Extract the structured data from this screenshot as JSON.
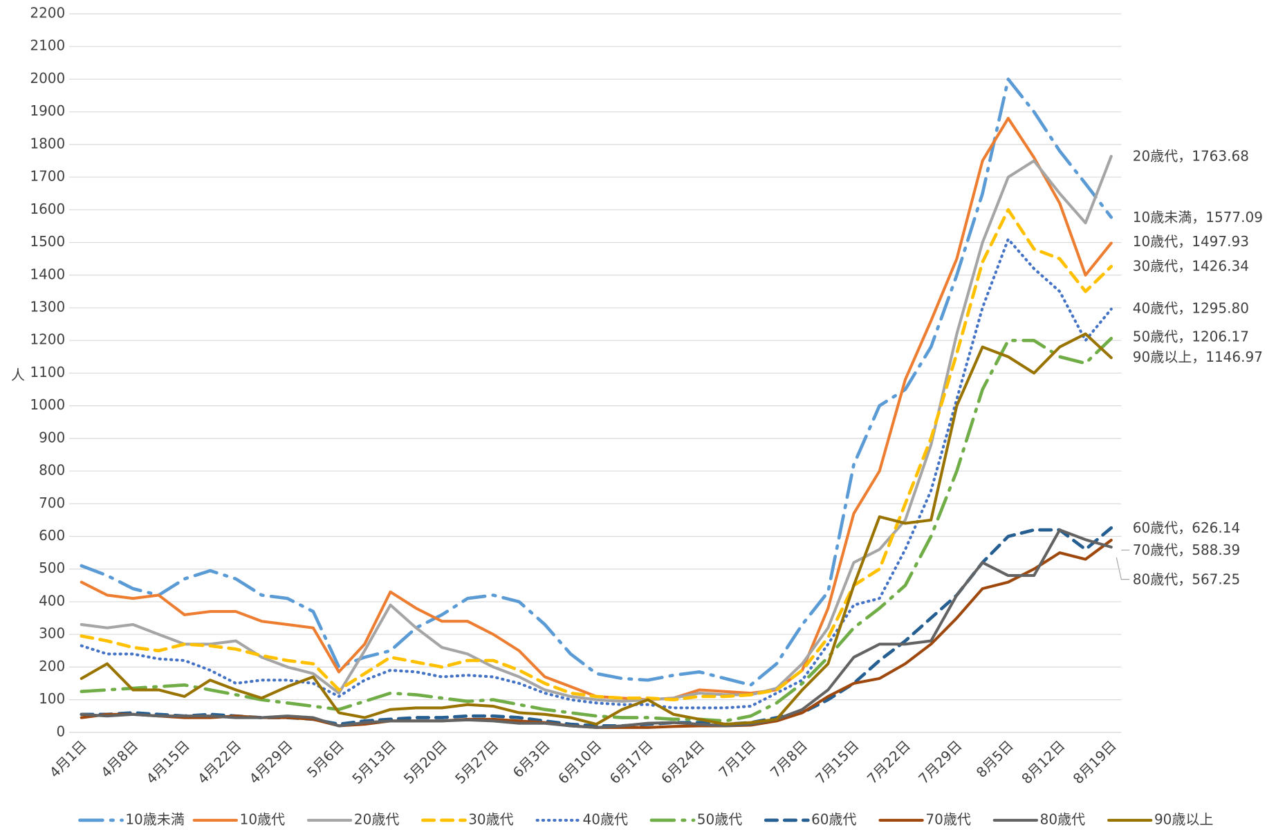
{
  "chart_data": {
    "type": "line",
    "y_label": "人",
    "categories": [
      "4月1日",
      null,
      "4月8日",
      null,
      "4月15日",
      null,
      "4月22日",
      null,
      "4月29日",
      null,
      "5月6日",
      null,
      "5月13日",
      null,
      "5月20日",
      null,
      "5月27日",
      null,
      "6月3日",
      null,
      "6月10日",
      null,
      "6月17日",
      null,
      "6月24日",
      null,
      "7月1日",
      null,
      "7月8日",
      null,
      "7月15日",
      null,
      "7月22日",
      null,
      "7月29日",
      null,
      "8月5日",
      null,
      "8月12日",
      null,
      "8月19日"
    ],
    "ylim": [
      0,
      2200
    ],
    "yticks": [
      0,
      100,
      200,
      300,
      400,
      500,
      600,
      700,
      800,
      900,
      1000,
      1100,
      1200,
      1300,
      1400,
      1500,
      1600,
      1700,
      1800,
      1900,
      2000,
      2100,
      2200
    ],
    "grid": true,
    "legend": "bottom",
    "series": [
      {
        "name": "10歳未満",
        "color": "#5b9bd5",
        "dash": "long-dash-dot",
        "values": [
          510,
          480,
          440,
          420,
          470,
          495,
          470,
          420,
          410,
          370,
          200,
          230,
          250,
          320,
          360,
          410,
          420,
          400,
          330,
          240,
          180,
          165,
          160,
          175,
          185,
          165,
          145,
          210,
          330,
          430,
          820,
          1000,
          1050,
          1180,
          1400,
          1650,
          2000,
          1900,
          1780,
          1680,
          1577.09
        ]
      },
      {
        "name": "10歳代",
        "color": "#ed7d31",
        "dash": "solid",
        "values": [
          460,
          420,
          410,
          420,
          360,
          370,
          370,
          340,
          330,
          320,
          185,
          270,
          430,
          380,
          340,
          340,
          300,
          250,
          170,
          140,
          110,
          105,
          100,
          105,
          130,
          125,
          120,
          130,
          190,
          380,
          670,
          800,
          1080,
          1260,
          1450,
          1750,
          1880,
          1760,
          1620,
          1400,
          1497.93
        ]
      },
      {
        "name": "20歳代",
        "color": "#a5a5a5",
        "dash": "solid",
        "values": [
          330,
          320,
          330,
          300,
          270,
          270,
          280,
          230,
          200,
          180,
          120,
          250,
          390,
          320,
          260,
          240,
          200,
          170,
          130,
          110,
          100,
          95,
          100,
          105,
          120,
          115,
          115,
          135,
          210,
          320,
          520,
          560,
          650,
          880,
          1220,
          1500,
          1700,
          1750,
          1650,
          1560,
          1763.68
        ]
      },
      {
        "name": "30歳代",
        "color": "#ffc000",
        "dash": "dash",
        "values": [
          295,
          280,
          260,
          250,
          270,
          265,
          255,
          235,
          220,
          210,
          130,
          180,
          230,
          215,
          200,
          220,
          220,
          190,
          150,
          120,
          110,
          105,
          105,
          100,
          110,
          110,
          115,
          130,
          190,
          290,
          450,
          500,
          700,
          900,
          1160,
          1440,
          1600,
          1480,
          1450,
          1350,
          1426.34
        ]
      },
      {
        "name": "40歳代",
        "color": "#4472c4",
        "dash": "dot",
        "values": [
          265,
          240,
          240,
          225,
          220,
          190,
          150,
          160,
          160,
          150,
          110,
          160,
          190,
          185,
          170,
          175,
          170,
          150,
          120,
          100,
          90,
          85,
          85,
          75,
          75,
          75,
          80,
          120,
          160,
          270,
          390,
          410,
          560,
          740,
          1020,
          1300,
          1510,
          1420,
          1350,
          1200,
          1295.8
        ]
      },
      {
        "name": "50歳代",
        "color": "#70ad47",
        "dash": "long-dash-dot",
        "values": [
          125,
          130,
          135,
          140,
          145,
          130,
          115,
          100,
          90,
          80,
          70,
          95,
          120,
          115,
          105,
          95,
          100,
          85,
          70,
          60,
          50,
          45,
          45,
          40,
          40,
          35,
          50,
          90,
          150,
          230,
          320,
          380,
          450,
          600,
          800,
          1050,
          1200,
          1200,
          1150,
          1130,
          1206.17
        ]
      },
      {
        "name": "60歳代",
        "color": "#255e91",
        "dash": "dash",
        "values": [
          55,
          55,
          60,
          55,
          50,
          55,
          50,
          45,
          45,
          40,
          25,
          35,
          40,
          45,
          45,
          50,
          50,
          45,
          35,
          25,
          20,
          20,
          25,
          30,
          30,
          25,
          30,
          45,
          60,
          100,
          150,
          220,
          280,
          350,
          420,
          520,
          600,
          620,
          620,
          560,
          626.14
        ]
      },
      {
        "name": "70歳代",
        "color": "#9e480e",
        "dash": "solid",
        "values": [
          45,
          55,
          55,
          50,
          45,
          45,
          50,
          45,
          45,
          40,
          20,
          25,
          35,
          35,
          35,
          40,
          40,
          35,
          30,
          20,
          15,
          15,
          15,
          18,
          20,
          20,
          22,
          35,
          60,
          110,
          150,
          165,
          210,
          270,
          350,
          440,
          460,
          500,
          550,
          530,
          588.39
        ]
      },
      {
        "name": "80歳代",
        "color": "#636363",
        "dash": "solid",
        "values": [
          55,
          50,
          55,
          50,
          50,
          50,
          45,
          45,
          50,
          45,
          20,
          30,
          35,
          35,
          35,
          38,
          35,
          28,
          28,
          20,
          15,
          20,
          28,
          30,
          25,
          20,
          25,
          40,
          70,
          130,
          230,
          270,
          270,
          280,
          420,
          520,
          480,
          480,
          620,
          590,
          567.25
        ]
      },
      {
        "name": "90歳以上",
        "color": "#997300",
        "dash": "solid",
        "values": [
          165,
          210,
          130,
          130,
          110,
          160,
          130,
          105,
          140,
          170,
          60,
          45,
          70,
          75,
          75,
          85,
          80,
          60,
          55,
          45,
          25,
          70,
          100,
          55,
          40,
          25,
          30,
          40,
          130,
          210,
          450,
          660,
          640,
          650,
          1000,
          1180,
          1150,
          1100,
          1180,
          1220,
          1146.97
        ]
      }
    ],
    "annotations": [
      "20歳代，1763.68",
      "10歳未満，1577.09",
      "10歳代，1497.93",
      "30歳代，1426.34",
      "40歳代，1295.80",
      "50歳代，1206.17",
      "90歳以上，1146.97",
      "60歳代，626.14",
      "70歳代，588.39",
      "80歳代，567.25"
    ]
  }
}
